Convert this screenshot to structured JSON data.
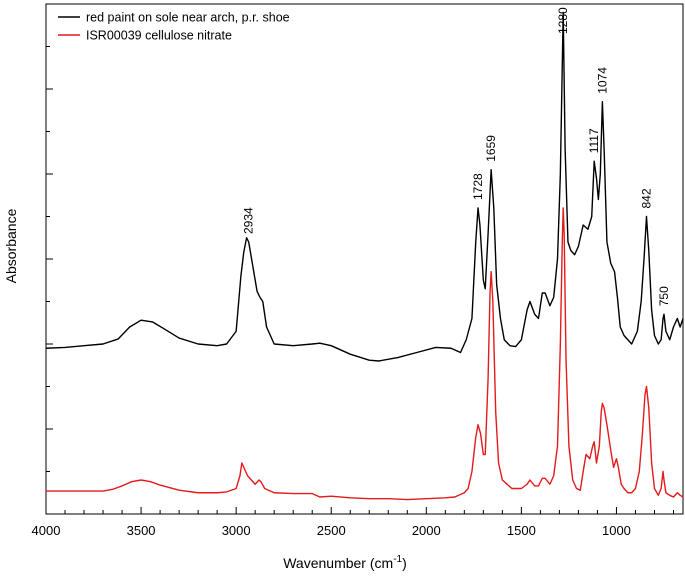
{
  "chart_data": {
    "type": "line",
    "title": "",
    "xlabel": "Wavenumber (cm",
    "xlabel_sup": "-1",
    "xlabel_end": ")",
    "ylabel": "Absorbance",
    "xlim": [
      4000,
      650
    ],
    "x_reversed": true,
    "ylim": [
      0,
      6
    ],
    "x_ticks": [
      "4000",
      "3500",
      "3000",
      "2500",
      "2000",
      "1500",
      "1000"
    ],
    "y_tick_labels_shown": false,
    "grid": false,
    "legend": "top-left",
    "series": [
      {
        "name": "red paint on sole near arch, p.r. shoe",
        "color": "#000000",
        "points": [
          [
            4000,
            1.95
          ],
          [
            3900,
            1.96
          ],
          [
            3800,
            1.98
          ],
          [
            3700,
            2.0
          ],
          [
            3620,
            2.06
          ],
          [
            3560,
            2.2
          ],
          [
            3500,
            2.28
          ],
          [
            3440,
            2.26
          ],
          [
            3380,
            2.18
          ],
          [
            3300,
            2.07
          ],
          [
            3200,
            2.0
          ],
          [
            3100,
            1.98
          ],
          [
            3050,
            2.0
          ],
          [
            3000,
            2.15
          ],
          [
            2975,
            2.8
          ],
          [
            2960,
            3.08
          ],
          [
            2945,
            3.25
          ],
          [
            2934,
            3.2
          ],
          [
            2915,
            2.95
          ],
          [
            2890,
            2.62
          ],
          [
            2875,
            2.55
          ],
          [
            2860,
            2.5
          ],
          [
            2840,
            2.2
          ],
          [
            2800,
            2.0
          ],
          [
            2700,
            1.98
          ],
          [
            2600,
            2.0
          ],
          [
            2560,
            2.01
          ],
          [
            2500,
            1.98
          ],
          [
            2400,
            1.88
          ],
          [
            2300,
            1.81
          ],
          [
            2250,
            1.8
          ],
          [
            2150,
            1.84
          ],
          [
            2050,
            1.9
          ],
          [
            1950,
            1.96
          ],
          [
            1870,
            1.95
          ],
          [
            1820,
            1.9
          ],
          [
            1790,
            2.05
          ],
          [
            1760,
            2.3
          ],
          [
            1740,
            3.2
          ],
          [
            1728,
            3.6
          ],
          [
            1718,
            3.4
          ],
          [
            1700,
            2.75
          ],
          [
            1690,
            2.65
          ],
          [
            1675,
            3.3
          ],
          [
            1659,
            4.05
          ],
          [
            1645,
            3.6
          ],
          [
            1630,
            2.7
          ],
          [
            1610,
            2.3
          ],
          [
            1590,
            2.05
          ],
          [
            1560,
            1.98
          ],
          [
            1530,
            1.97
          ],
          [
            1500,
            2.05
          ],
          [
            1470,
            2.4
          ],
          [
            1455,
            2.5
          ],
          [
            1430,
            2.35
          ],
          [
            1410,
            2.3
          ],
          [
            1390,
            2.6
          ],
          [
            1375,
            2.6
          ],
          [
            1350,
            2.45
          ],
          [
            1330,
            2.55
          ],
          [
            1310,
            3.0
          ],
          [
            1295,
            4.0
          ],
          [
            1280,
            5.9
          ],
          [
            1270,
            4.3
          ],
          [
            1255,
            3.2
          ],
          [
            1240,
            3.1
          ],
          [
            1220,
            3.05
          ],
          [
            1200,
            3.15
          ],
          [
            1175,
            3.4
          ],
          [
            1150,
            3.35
          ],
          [
            1130,
            3.5
          ],
          [
            1117,
            4.15
          ],
          [
            1105,
            3.95
          ],
          [
            1095,
            3.7
          ],
          [
            1085,
            4.0
          ],
          [
            1074,
            4.85
          ],
          [
            1065,
            4.3
          ],
          [
            1050,
            3.2
          ],
          [
            1030,
            2.95
          ],
          [
            1010,
            2.85
          ],
          [
            995,
            2.55
          ],
          [
            980,
            2.2
          ],
          [
            960,
            2.1
          ],
          [
            940,
            2.05
          ],
          [
            920,
            2.0
          ],
          [
            890,
            2.15
          ],
          [
            870,
            2.5
          ],
          [
            855,
            3.0
          ],
          [
            842,
            3.5
          ],
          [
            830,
            3.1
          ],
          [
            815,
            2.4
          ],
          [
            800,
            2.1
          ],
          [
            780,
            2.0
          ],
          [
            765,
            2.05
          ],
          [
            755,
            2.3
          ],
          [
            750,
            2.35
          ],
          [
            740,
            2.15
          ],
          [
            720,
            2.05
          ],
          [
            700,
            2.2
          ],
          [
            680,
            2.3
          ],
          [
            665,
            2.2
          ],
          [
            650,
            2.3
          ]
        ]
      },
      {
        "name": "ISR00039 cellulose nitrate",
        "color": "#e41a1c",
        "points": [
          [
            4000,
            0.27
          ],
          [
            3800,
            0.27
          ],
          [
            3700,
            0.27
          ],
          [
            3650,
            0.29
          ],
          [
            3600,
            0.33
          ],
          [
            3550,
            0.38
          ],
          [
            3500,
            0.4
          ],
          [
            3450,
            0.38
          ],
          [
            3400,
            0.34
          ],
          [
            3300,
            0.28
          ],
          [
            3200,
            0.25
          ],
          [
            3100,
            0.25
          ],
          [
            3050,
            0.26
          ],
          [
            3000,
            0.3
          ],
          [
            2980,
            0.45
          ],
          [
            2970,
            0.6
          ],
          [
            2960,
            0.55
          ],
          [
            2940,
            0.45
          ],
          [
            2920,
            0.4
          ],
          [
            2900,
            0.35
          ],
          [
            2880,
            0.4
          ],
          [
            2870,
            0.38
          ],
          [
            2850,
            0.3
          ],
          [
            2800,
            0.25
          ],
          [
            2700,
            0.24
          ],
          [
            2600,
            0.24
          ],
          [
            2560,
            0.2
          ],
          [
            2500,
            0.21
          ],
          [
            2400,
            0.19
          ],
          [
            2300,
            0.18
          ],
          [
            2200,
            0.18
          ],
          [
            2100,
            0.17
          ],
          [
            2000,
            0.18
          ],
          [
            1900,
            0.19
          ],
          [
            1850,
            0.2
          ],
          [
            1800,
            0.25
          ],
          [
            1780,
            0.3
          ],
          [
            1760,
            0.5
          ],
          [
            1740,
            0.9
          ],
          [
            1728,
            1.05
          ],
          [
            1715,
            0.95
          ],
          [
            1700,
            0.7
          ],
          [
            1690,
            0.7
          ],
          [
            1675,
            1.6
          ],
          [
            1665,
            2.6
          ],
          [
            1659,
            2.85
          ],
          [
            1650,
            2.5
          ],
          [
            1635,
            1.2
          ],
          [
            1620,
            0.6
          ],
          [
            1600,
            0.4
          ],
          [
            1550,
            0.3
          ],
          [
            1500,
            0.3
          ],
          [
            1470,
            0.35
          ],
          [
            1455,
            0.4
          ],
          [
            1430,
            0.33
          ],
          [
            1410,
            0.33
          ],
          [
            1390,
            0.42
          ],
          [
            1375,
            0.42
          ],
          [
            1350,
            0.35
          ],
          [
            1330,
            0.45
          ],
          [
            1310,
            0.8
          ],
          [
            1295,
            2.0
          ],
          [
            1285,
            3.2
          ],
          [
            1280,
            3.6
          ],
          [
            1275,
            3.3
          ],
          [
            1265,
            1.8
          ],
          [
            1250,
            0.8
          ],
          [
            1230,
            0.4
          ],
          [
            1210,
            0.3
          ],
          [
            1190,
            0.28
          ],
          [
            1175,
            0.5
          ],
          [
            1160,
            0.7
          ],
          [
            1140,
            0.65
          ],
          [
            1125,
            0.8
          ],
          [
            1117,
            0.85
          ],
          [
            1105,
            0.6
          ],
          [
            1090,
            0.8
          ],
          [
            1080,
            1.2
          ],
          [
            1074,
            1.3
          ],
          [
            1065,
            1.25
          ],
          [
            1050,
            1.05
          ],
          [
            1030,
            0.75
          ],
          [
            1015,
            0.55
          ],
          [
            1000,
            0.65
          ],
          [
            990,
            0.55
          ],
          [
            975,
            0.35
          ],
          [
            960,
            0.3
          ],
          [
            940,
            0.25
          ],
          [
            920,
            0.25
          ],
          [
            900,
            0.3
          ],
          [
            880,
            0.5
          ],
          [
            865,
            0.9
          ],
          [
            850,
            1.4
          ],
          [
            842,
            1.5
          ],
          [
            830,
            1.25
          ],
          [
            815,
            0.6
          ],
          [
            800,
            0.3
          ],
          [
            780,
            0.22
          ],
          [
            765,
            0.3
          ],
          [
            755,
            0.5
          ],
          [
            750,
            0.4
          ],
          [
            740,
            0.25
          ],
          [
            720,
            0.22
          ],
          [
            700,
            0.2
          ],
          [
            680,
            0.25
          ],
          [
            665,
            0.22
          ],
          [
            650,
            0.2
          ]
        ]
      }
    ],
    "annotations": [
      {
        "text": "2934",
        "x": 2934,
        "series": 0
      },
      {
        "text": "1728",
        "x": 1728,
        "series": 0
      },
      {
        "text": "1659",
        "x": 1659,
        "series": 0
      },
      {
        "text": "1280",
        "x": 1280,
        "series": 0
      },
      {
        "text": "1117",
        "x": 1117,
        "series": 0
      },
      {
        "text": "1074",
        "x": 1074,
        "series": 0
      },
      {
        "text": "842",
        "x": 842,
        "series": 0
      },
      {
        "text": "750",
        "x": 750,
        "series": 0
      }
    ]
  }
}
